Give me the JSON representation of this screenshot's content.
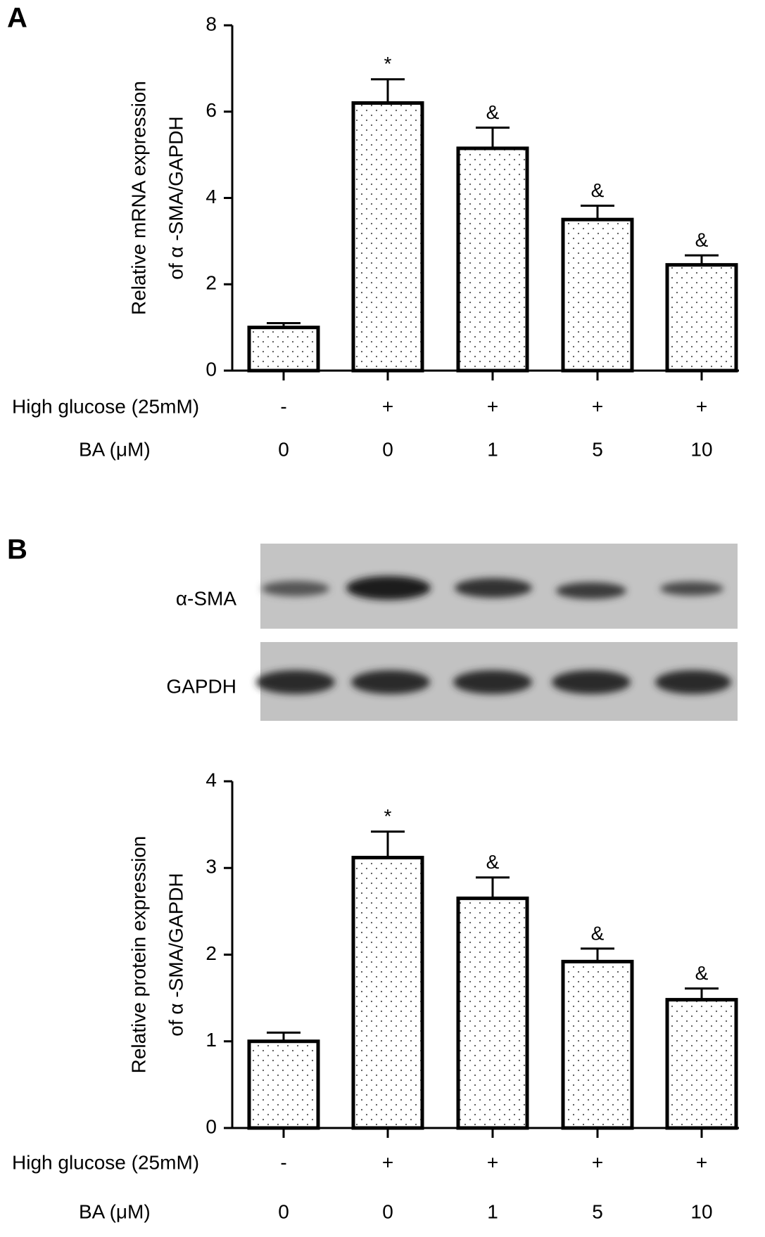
{
  "chart_data": [
    {
      "type": "bar",
      "panel_label": "A",
      "ylabel": [
        "Relative mRNA expression",
        "of α -SMA/GAPDH"
      ],
      "values": [
        1.0,
        6.2,
        5.15,
        3.5,
        2.45
      ],
      "errors": [
        0.1,
        0.55,
        0.48,
        0.32,
        0.22
      ],
      "annotations": [
        null,
        "*",
        "&",
        "&",
        "&"
      ],
      "condition_rows": [
        {
          "label": "High glucose (25mM)",
          "values": [
            "-",
            "+",
            "+",
            "+",
            "+"
          ]
        },
        {
          "label": "BA (μM)",
          "values": [
            "0",
            "0",
            "1",
            "5",
            "10"
          ]
        }
      ],
      "ylim": [
        0,
        8
      ],
      "yticks": [
        0,
        2,
        4,
        6,
        8
      ],
      "color": "#ffffff"
    },
    {
      "type": "bar",
      "ylabel": [
        "Relative protein expression",
        "of α -SMA/GAPDH"
      ],
      "values": [
        1.0,
        3.12,
        2.65,
        1.92,
        1.48
      ],
      "errors": [
        0.1,
        0.3,
        0.24,
        0.15,
        0.13
      ],
      "annotations": [
        null,
        "*",
        "&",
        "&",
        "&"
      ],
      "condition_rows": [
        {
          "label": "High glucose (25mM)",
          "values": [
            "-",
            "+",
            "+",
            "+",
            "+"
          ]
        },
        {
          "label": "BA (μM)",
          "values": [
            "0",
            "0",
            "1",
            "5",
            "10"
          ]
        }
      ],
      "ylim": [
        0,
        4
      ],
      "yticks": [
        0,
        1,
        2,
        3,
        4
      ],
      "color": "#ffffff"
    }
  ],
  "blot": {
    "panel_label": "B",
    "rows": [
      "α-SMA",
      "GAPDH"
    ]
  }
}
